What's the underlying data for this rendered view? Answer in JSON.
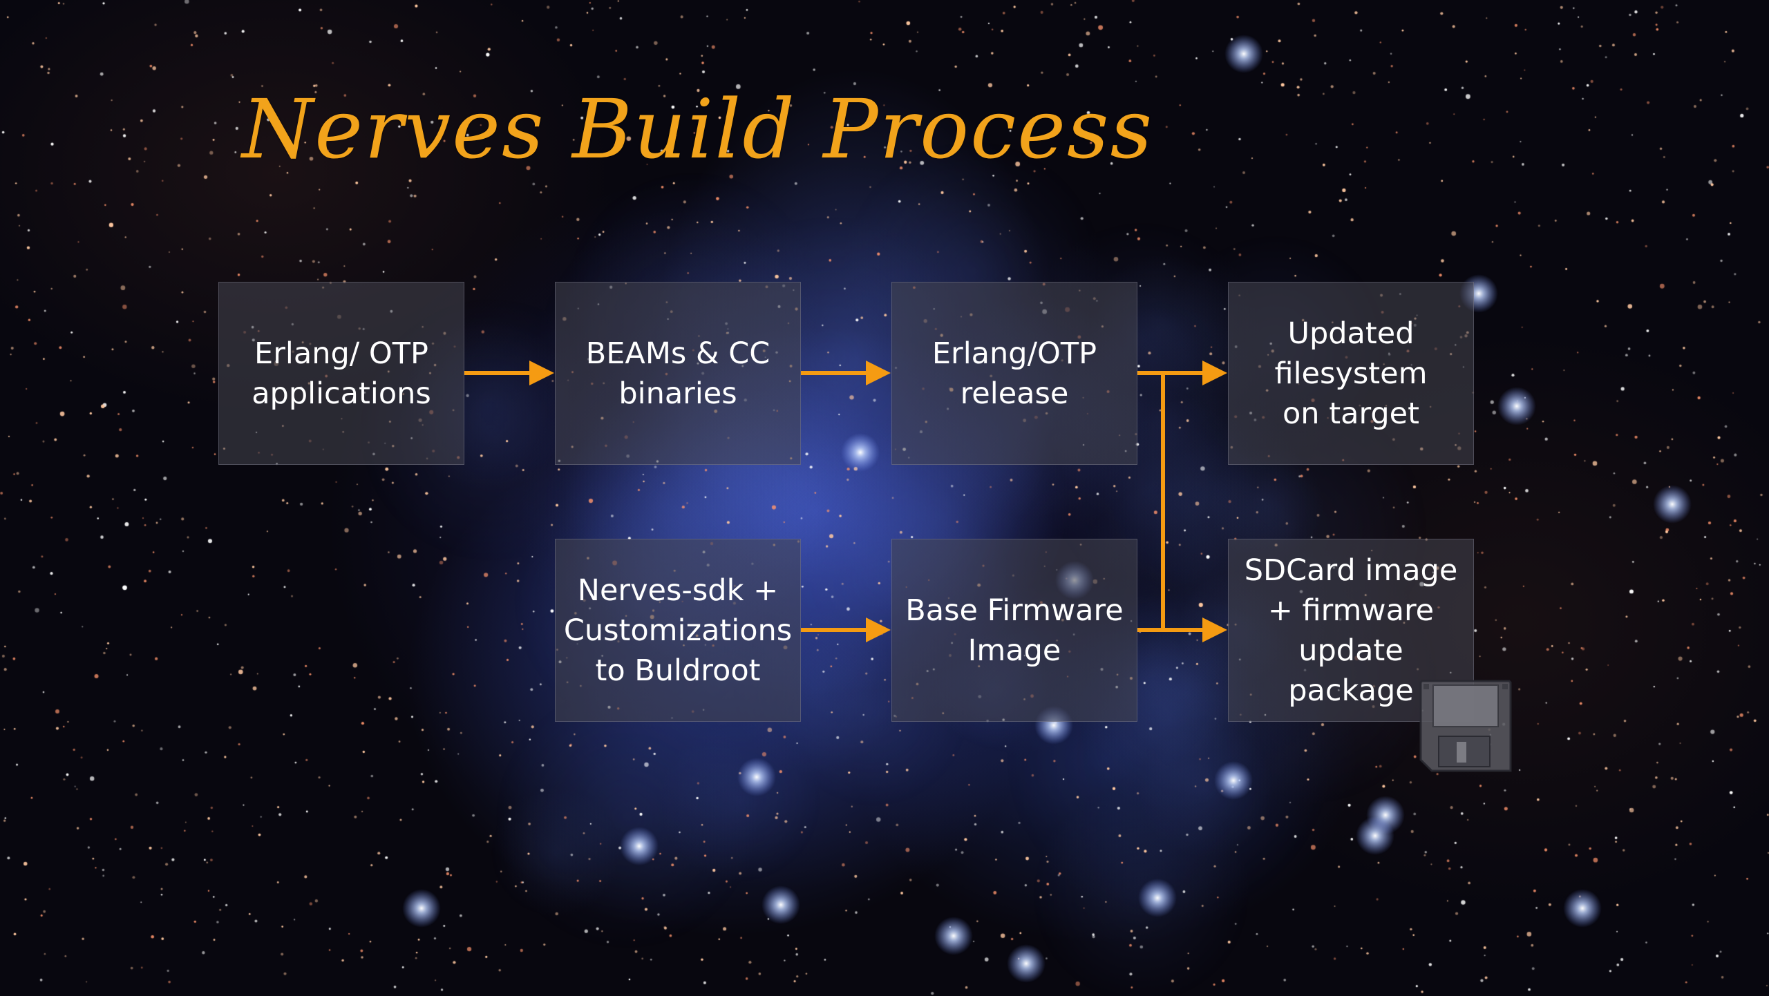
{
  "title": "Nerves Build Process",
  "boxes": {
    "erlang_otp_apps": "Erlang/ OTP\napplications",
    "beams_cc": "BEAMs & CC\nbinaries",
    "erlang_otp_release": "Erlang/OTP\nrelease",
    "updated_fs": "Updated\nfilesystem\non target",
    "nerves_sdk": "Nerves-sdk +\nCustomizations\nto Buldroot",
    "base_firmware": "Base Firmware\nImage",
    "sdcard": "SDCard image\n+ firmware\nupdate\npackage"
  },
  "colors": {
    "accent": "#f2a31b",
    "arrow": "#f59b12",
    "box_fill": "rgba(70,70,80,0.55)",
    "text": "#ffffff"
  },
  "icons": {
    "floppy": "floppy-disk-icon"
  }
}
